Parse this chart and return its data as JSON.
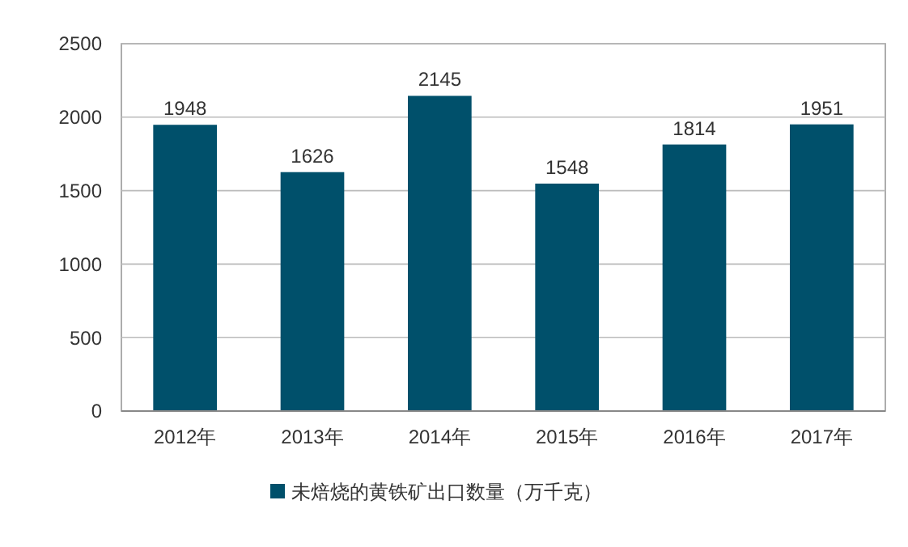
{
  "chart_data": {
    "type": "bar",
    "categories": [
      "2012年",
      "2013年",
      "2014年",
      "2015年",
      "2016年",
      "2017年"
    ],
    "series": [
      {
        "name": "未焙烧的黄铁矿出口数量（万千克）",
        "color": "#00506b",
        "values": [
          1948,
          1626,
          2145,
          1548,
          1814,
          1951
        ]
      }
    ],
    "ylim": [
      0,
      2500
    ],
    "yticks": [
      0,
      500,
      1000,
      1500,
      2000,
      2500
    ],
    "grid": "y",
    "legend": "bottom",
    "data_labels": true
  }
}
